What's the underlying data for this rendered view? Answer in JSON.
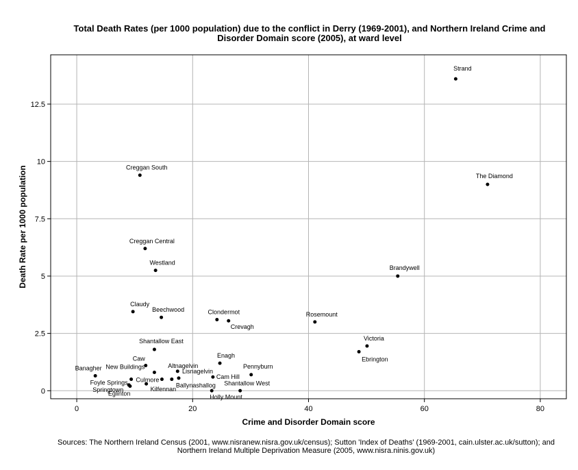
{
  "chart_data": {
    "type": "scatter",
    "title_lines": [
      "Total Death Rates (per 1000 population) due to the conflict in Derry (1969-2001), and Northern Ireland Crime and",
      "Disorder Domain score (2005), at ward level"
    ],
    "xlabel": "Crime and Disorder Domain score",
    "ylabel": "Death Rate per 1000 population",
    "xlim": [
      -4.5,
      84.5
    ],
    "ylim": [
      -0.35,
      14.65
    ],
    "xticks": [
      0,
      20,
      40,
      60,
      80
    ],
    "yticks": [
      0,
      2.5,
      5,
      7.5,
      10,
      12.5
    ],
    "xtick_labels": [
      "0",
      "20",
      "40",
      "60",
      "80"
    ],
    "ytick_labels": [
      "0",
      "2.5",
      "5",
      "7.5",
      "10",
      "12.5"
    ],
    "grid": true,
    "point_color": "#000000",
    "points": [
      {
        "label": "Strand",
        "x": 65.4,
        "y": 13.6
      },
      {
        "label": "The Diamond",
        "x": 70.9,
        "y": 9.0
      },
      {
        "label": "Creggan South",
        "x": 10.9,
        "y": 9.4
      },
      {
        "label": "Creggan Central",
        "x": 11.8,
        "y": 6.2
      },
      {
        "label": "Westland",
        "x": 13.6,
        "y": 5.25
      },
      {
        "label": "Brandywell",
        "x": 55.4,
        "y": 5.0
      },
      {
        "label": "Claudy",
        "x": 9.7,
        "y": 3.45
      },
      {
        "label": "Beechwood",
        "x": 14.6,
        "y": 3.2
      },
      {
        "label": "Clondermot",
        "x": 24.2,
        "y": 3.1
      },
      {
        "label": "Crevagh",
        "x": 26.2,
        "y": 3.05
      },
      {
        "label": "Rosemount",
        "x": 41.1,
        "y": 3.0
      },
      {
        "label": "Victoria",
        "x": 50.1,
        "y": 1.95
      },
      {
        "label": "Ebrington",
        "x": 48.7,
        "y": 1.7
      },
      {
        "label": "Shantallow East",
        "x": 13.4,
        "y": 1.8
      },
      {
        "label": "Enagh",
        "x": 24.7,
        "y": 1.2
      },
      {
        "label": "Caw",
        "x": 11.9,
        "y": 1.1
      },
      {
        "label": "Altnagelvin",
        "x": 17.4,
        "y": 0.85
      },
      {
        "label": "Lisnagelvin",
        "x": 17.6,
        "y": 0.55
      },
      {
        "label": "Pennyburn",
        "x": 30.1,
        "y": 0.7
      },
      {
        "label": "New Buildings",
        "x": 13.4,
        "y": 0.8
      },
      {
        "label": "Banagher",
        "x": 3.2,
        "y": 0.65
      },
      {
        "label": "Cam Hill",
        "x": 23.5,
        "y": 0.6
      },
      {
        "label": "Culmore",
        "x": 14.7,
        "y": 0.5
      },
      {
        "label": "Ballynashallog",
        "x": 16.4,
        "y": 0.5
      },
      {
        "label": "Foyle Springs",
        "x": 9.4,
        "y": 0.5
      },
      {
        "label": "Springtown",
        "x": 9.0,
        "y": 0.25
      },
      {
        "label": "Eglinton",
        "x": 9.2,
        "y": 0.2
      },
      {
        "label": "Kilfennan",
        "x": 12.0,
        "y": 0.3
      },
      {
        "label": "Holly Mount",
        "x": 23.3,
        "y": 0.0
      },
      {
        "label": "Shantallow West",
        "x": 28.2,
        "y": 0.0
      }
    ]
  },
  "sources_lines": [
    "Sources: The Northern Ireland Census (2001, www.nisranew.nisra.gov.uk/census); Sutton 'Index of Deaths' (1969-2001, cain.ulster.ac.uk/sutton); and",
    "Northern Ireland Multiple Deprivation Measure (2005, www.nisra.ninis.gov.uk)"
  ]
}
